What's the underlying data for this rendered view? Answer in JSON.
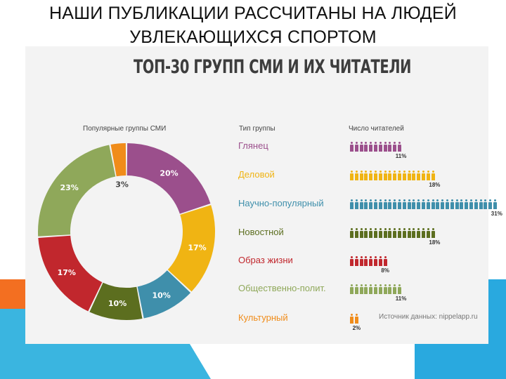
{
  "slide": {
    "title_line1": "НАШИ ПУБЛИКАЦИИ РАССЧИТАНЫ НА ЛЮДЕЙ",
    "title_line2": "УВЛЕКАЮЩИХСЯ СПОРТОМ"
  },
  "infographic": {
    "title": "ТОП-30 ГРУПП СМИ И ИХ ЧИТАТЕЛИ",
    "headers": {
      "groups": "Популярные группы СМИ",
      "type": "Тип группы",
      "readers": "Число читателей"
    },
    "source": "Источник данных: nippelapp.ru"
  },
  "chart_data": [
    {
      "type": "pie",
      "title": "Популярные группы СМИ",
      "slices": [
        {
          "label": "20%",
          "value": 20,
          "color": "#9b4f8c"
        },
        {
          "label": "17%",
          "value": 17,
          "color": "#f0b413"
        },
        {
          "label": "10%",
          "value": 10,
          "color": "#3f8fab"
        },
        {
          "label": "10%",
          "value": 10,
          "color": "#5c6e1f"
        },
        {
          "label": "17%",
          "value": 17,
          "color": "#c1272d"
        },
        {
          "label": "23%",
          "value": 23,
          "color": "#8fa85a"
        },
        {
          "label": "3%",
          "value": 3,
          "color": "#f08c1a"
        }
      ]
    },
    {
      "type": "bar",
      "title": "Число читателей",
      "categories": [
        "Глянец",
        "Деловой",
        "Научно-популярный",
        "Новостной",
        "Образ жизни",
        "Общественно-полит.",
        "Культурный"
      ],
      "values": [
        11,
        18,
        31,
        18,
        8,
        11,
        2
      ],
      "labels": [
        "11%",
        "18%",
        "31%",
        "18%",
        "8%",
        "11%",
        "2%"
      ],
      "colors": [
        "#9b4f8c",
        "#f0b413",
        "#3f8fab",
        "#5c6e1f",
        "#c1272d",
        "#8fa85a",
        "#f08c1a"
      ]
    }
  ]
}
